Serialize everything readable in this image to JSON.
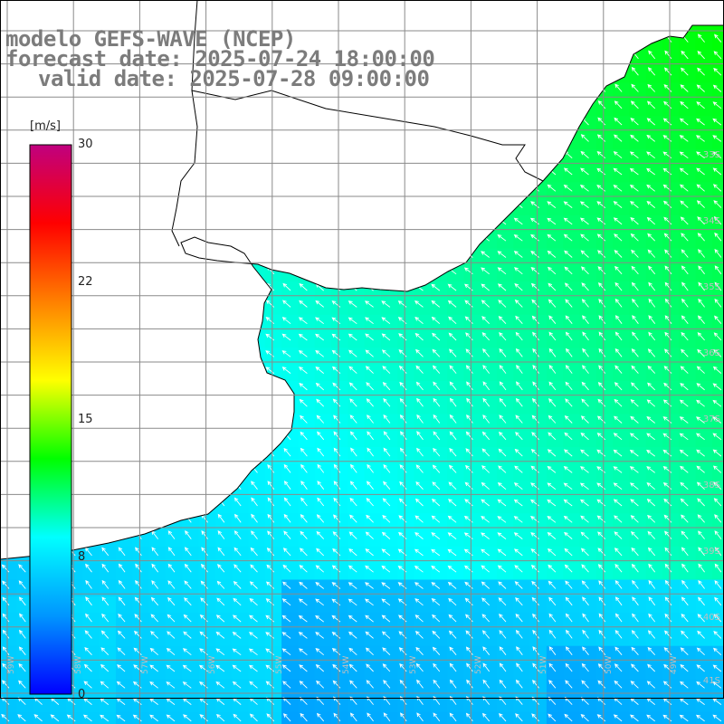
{
  "titles": {
    "model": "modelo GEFS-WAVE (NCEP)",
    "forecast": "forecast date: 2025-07-24 18:00:00",
    "valid": "valid date: 2025-07-28 09:00:00"
  },
  "colorbar": {
    "unit": "[m/s]",
    "ticks": [
      "30",
      "22",
      "15",
      "8",
      "0"
    ],
    "tick_values": [
      30,
      22,
      15,
      8,
      0
    ],
    "range": [
      0,
      30
    ],
    "colors": [
      "#0000ff",
      "#0096ff",
      "#00ffff",
      "#00ff00",
      "#ffff00",
      "#ff8000",
      "#ff0000",
      "#c0007f"
    ]
  },
  "map": {
    "land_color": "#ffffff",
    "coast_color": "#000000",
    "grid_color": "#8a8a8a",
    "arrow_color": "#ffffff",
    "lat_labels": [
      "33S",
      "34S",
      "35S",
      "36S",
      "37S",
      "38S",
      "39S",
      "40S",
      "41S"
    ],
    "lon_labels": [
      "59W",
      "58W",
      "57W",
      "56W",
      "55W",
      "54W",
      "53W",
      "52W",
      "51W",
      "50W",
      "49W"
    ]
  },
  "field": {
    "description_unit": "m/s",
    "wind_direction": "from south-east toward north-west"
  }
}
